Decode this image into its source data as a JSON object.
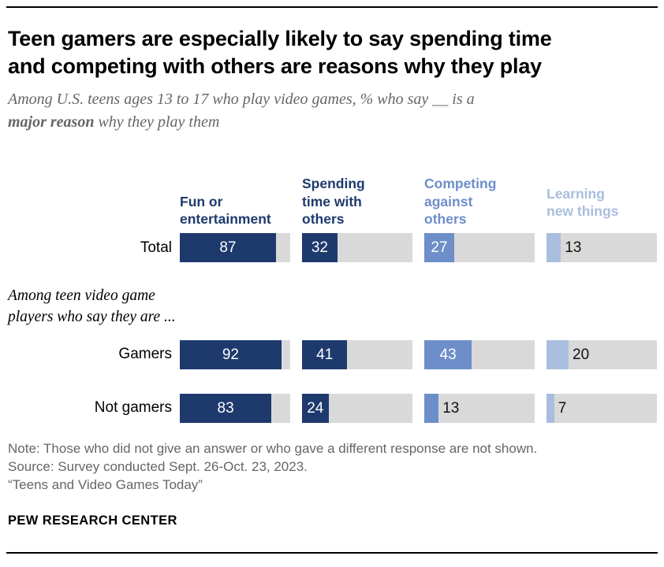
{
  "title": "Teen gamers are especially likely to say spending time\nand competing with others are reasons why they play",
  "subtitle": {
    "part1": "Among U.S. teens ages 13 to 17 who play video games, % who say __ is a\n",
    "bold": "major reason",
    "part2": " why they play them"
  },
  "chart_data": {
    "type": "bar",
    "orientation": "horizontal",
    "unit": "%",
    "xlim": [
      0,
      100
    ],
    "track_color": "#d9d9d9",
    "categories": [
      {
        "label": "Fun or entertainment",
        "display": "Fun or\nentertainment",
        "color": "#1e3a6d"
      },
      {
        "label": "Spending time with others",
        "display": "Spending\ntime with\nothers",
        "color": "#1e3a6d"
      },
      {
        "label": "Competing against others",
        "display": "Competing\nagainst\nothers",
        "color": "#6d8ec9"
      },
      {
        "label": "Learning new things",
        "display": "Learning\nnew things",
        "color": "#a9bede"
      }
    ],
    "group_label": "Among teen video game\nplayers who say they are ...",
    "rows": [
      {
        "label": "Total",
        "values": [
          87,
          32,
          27,
          13
        ]
      },
      {
        "label": "Gamers",
        "values": [
          92,
          41,
          43,
          20
        ]
      },
      {
        "label": "Not gamers",
        "values": [
          83,
          24,
          13,
          7
        ]
      }
    ],
    "value_label_inside_color": "#ffffff",
    "value_label_outside_color": "#111111"
  },
  "notes": {
    "note": "Note: Those who did not give an answer or who gave a different response are not shown.",
    "source": "Source: Survey conducted Sept. 26-Oct. 23, 2023.",
    "report": "“Teens and Video Games Today”"
  },
  "footer": "PEW RESEARCH CENTER"
}
